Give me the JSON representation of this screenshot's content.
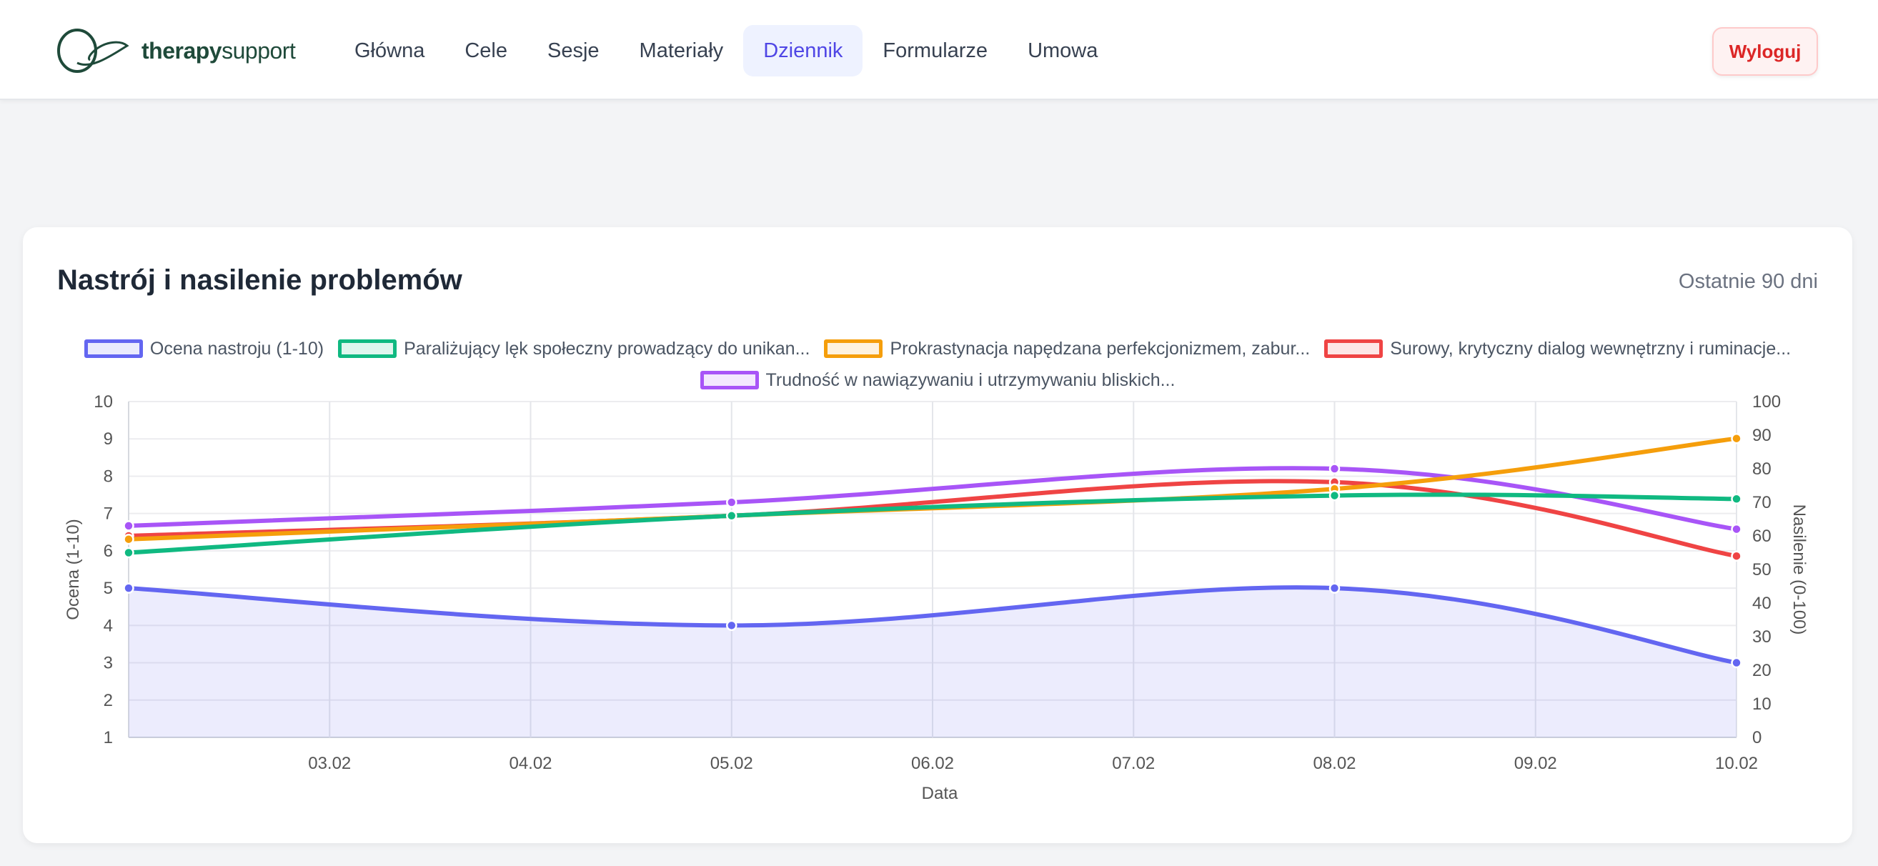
{
  "brand": {
    "name_bold": "therapy",
    "name_regular": "support"
  },
  "nav": {
    "items": [
      {
        "label": "Główna",
        "active": false
      },
      {
        "label": "Cele",
        "active": false
      },
      {
        "label": "Sesje",
        "active": false
      },
      {
        "label": "Materiały",
        "active": false
      },
      {
        "label": "Dziennik",
        "active": true
      },
      {
        "label": "Formularze",
        "active": false
      },
      {
        "label": "Umowa",
        "active": false
      }
    ],
    "logout_label": "Wyloguj"
  },
  "card": {
    "title": "Nastrój i nasilenie problemów",
    "range_label": "Ostatnie 90 dni"
  },
  "colors": {
    "accent": "#4f46e5",
    "logout": "#dc2626"
  },
  "chart_data": {
    "type": "line",
    "title": "",
    "xlabel": "Data",
    "ylabel_left": "Ocena (1-10)",
    "ylabel_right": "Nasilenie (0-100)",
    "ylim_left": [
      1,
      10
    ],
    "ylim_right": [
      0,
      100
    ],
    "xlim": [
      "02.02",
      "10.02"
    ],
    "grid": true,
    "legend_position": "top",
    "x_ticks": [
      "03.02",
      "04.02",
      "05.02",
      "06.02",
      "07.02",
      "08.02",
      "09.02",
      "10.02"
    ],
    "y_ticks_left": [
      1,
      2,
      3,
      4,
      5,
      6,
      7,
      8,
      9,
      10
    ],
    "y_ticks_right": [
      0,
      10,
      20,
      30,
      40,
      50,
      60,
      70,
      80,
      90,
      100
    ],
    "series": [
      {
        "name": "Ocena nastroju (1-10)",
        "axis": "left",
        "color": "#6366f1",
        "fill": true,
        "x": [
          "02.02",
          "05.02",
          "08.02",
          "10.02"
        ],
        "values": [
          5,
          4,
          5,
          3
        ]
      },
      {
        "name": "Paraliżujący lęk społeczny prowadzący do unikan...",
        "axis": "right",
        "color": "#10b981",
        "fill": false,
        "x": [
          "02.02",
          "05.02",
          "08.02",
          "10.02"
        ],
        "values": [
          55,
          66,
          72,
          71
        ]
      },
      {
        "name": "Prokrastynacja napędzana perfekcjonizmem, zabur...",
        "axis": "right",
        "color": "#f59e0b",
        "fill": false,
        "x": [
          "02.02",
          "05.02",
          "08.02",
          "10.02"
        ],
        "values": [
          59,
          66,
          74,
          89
        ]
      },
      {
        "name": "Surowy, krytyczny dialog wewnętrzny i ruminacje...",
        "axis": "right",
        "color": "#ef4444",
        "fill": false,
        "x": [
          "02.02",
          "05.02",
          "08.02",
          "10.02"
        ],
        "values": [
          60,
          66,
          76,
          54
        ]
      },
      {
        "name": "Trudność w nawiązywaniu i utrzymywaniu bliskich...",
        "axis": "right",
        "color": "#a855f7",
        "fill": false,
        "x": [
          "02.02",
          "05.02",
          "08.02",
          "10.02"
        ],
        "values": [
          63,
          70,
          80,
          62
        ]
      }
    ]
  }
}
